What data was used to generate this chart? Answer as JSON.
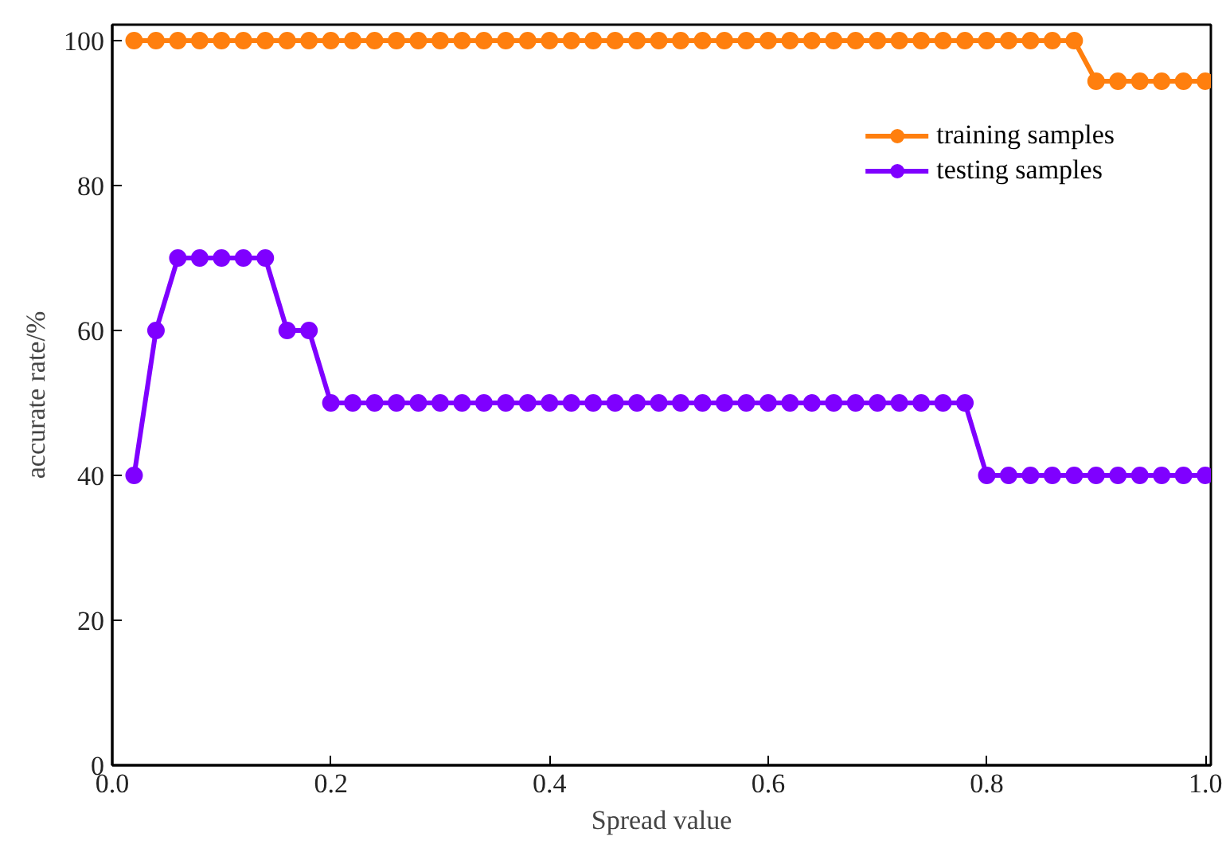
{
  "chart_data": {
    "type": "line",
    "xlabel": "Spread value",
    "ylabel": "accurate rate/%",
    "x": [
      0.02,
      0.04,
      0.06,
      0.08,
      0.1,
      0.12,
      0.14,
      0.16,
      0.18,
      0.2,
      0.22,
      0.24,
      0.26,
      0.28,
      0.3,
      0.32,
      0.34,
      0.36,
      0.38,
      0.4,
      0.42,
      0.44,
      0.46,
      0.48,
      0.5,
      0.52,
      0.54,
      0.56,
      0.58,
      0.6,
      0.62,
      0.64,
      0.66,
      0.68,
      0.7,
      0.72,
      0.74,
      0.76,
      0.78,
      0.8,
      0.82,
      0.84,
      0.86,
      0.88,
      0.9,
      0.92,
      0.94,
      0.96,
      0.98,
      1.0
    ],
    "series": [
      {
        "name": "training samples",
        "color": "#ff7f0e",
        "values": [
          100,
          100,
          100,
          100,
          100,
          100,
          100,
          100,
          100,
          100,
          100,
          100,
          100,
          100,
          100,
          100,
          100,
          100,
          100,
          100,
          100,
          100,
          100,
          100,
          100,
          100,
          100,
          100,
          100,
          100,
          100,
          100,
          100,
          100,
          100,
          100,
          100,
          100,
          100,
          100,
          100,
          100,
          100,
          100,
          94.4,
          94.4,
          94.4,
          94.4,
          94.4,
          94.4
        ]
      },
      {
        "name": "testing samples",
        "color": "#7f00ff",
        "values": [
          40,
          60,
          70,
          70,
          70,
          70,
          70,
          60,
          60,
          50,
          50,
          50,
          50,
          50,
          50,
          50,
          50,
          50,
          50,
          50,
          50,
          50,
          50,
          50,
          50,
          50,
          50,
          50,
          50,
          50,
          50,
          50,
          50,
          50,
          50,
          50,
          50,
          50,
          50,
          40,
          40,
          40,
          40,
          40,
          40,
          40,
          40,
          40,
          40,
          40
        ]
      }
    ],
    "xlim": [
      0,
      1.005
    ],
    "ylim": [
      0,
      102.2
    ],
    "xticks": [
      {
        "value": 0,
        "label": "0.0"
      },
      {
        "value": 0.2,
        "label": "0.2"
      },
      {
        "value": 0.4,
        "label": "0.4"
      },
      {
        "value": 0.6,
        "label": "0.6"
      },
      {
        "value": 0.8,
        "label": "0.8"
      },
      {
        "value": 1.0,
        "label": "1.0"
      }
    ],
    "yticks": [
      0,
      20,
      40,
      60,
      80,
      100
    ],
    "grid": false,
    "legend": "top right",
    "marker": "circle",
    "line_style": "solid"
  }
}
